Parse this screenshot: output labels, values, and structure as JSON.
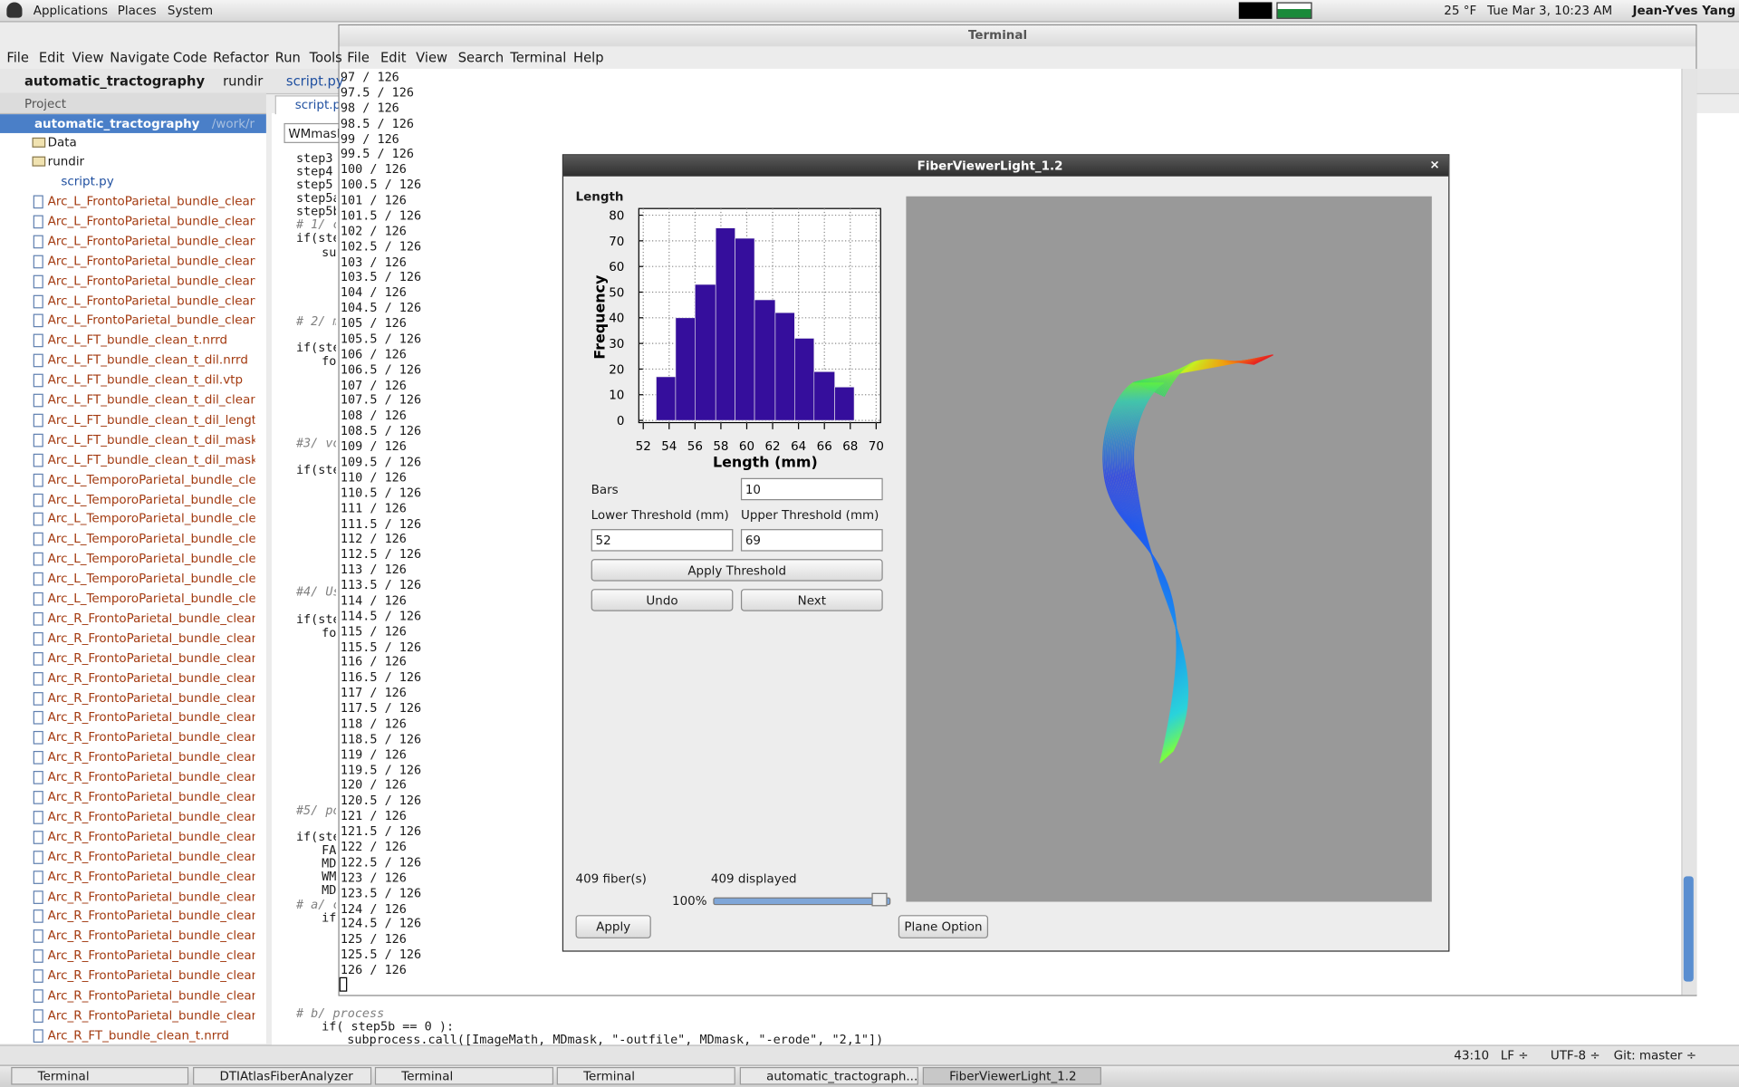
{
  "top_panel": {
    "menus": [
      "Applications",
      "Places",
      "System"
    ],
    "weather": "25 °F",
    "clock": "Tue Mar  3, 10:23 AM",
    "user": "Jean-Yves Yang"
  },
  "ide": {
    "menu": [
      "File",
      "Edit",
      "View",
      "Navigate",
      "Code",
      "Refactor",
      "Run",
      "Tools"
    ],
    "breadcrumb": [
      "automatic_tractography",
      "rundir",
      "script.py"
    ],
    "project_label": "Project",
    "root": {
      "name": "automatic_tractography",
      "path": "/work/r"
    },
    "folders": [
      "Data",
      "rundir"
    ],
    "script": "script.py",
    "files": [
      "Arc_L_FrontoParietal_bundle_clean_",
      "Arc_L_FrontoParietal_bundle_clean_",
      "Arc_L_FrontoParietal_bundle_clean_",
      "Arc_L_FrontoParietal_bundle_clean_",
      "Arc_L_FrontoParietal_bundle_clean_",
      "Arc_L_FrontoParietal_bundle_clean_",
      "Arc_L_FrontoParietal_bundle_clean_",
      "Arc_L_FT_bundle_clean_t.nrrd",
      "Arc_L_FT_bundle_clean_t_dil.nrrd",
      "Arc_L_FT_bundle_clean_t_dil.vtp",
      "Arc_L_FT_bundle_clean_t_dil_cleanE",
      "Arc_L_FT_bundle_clean_t_dil_length",
      "Arc_L_FT_bundle_clean_t_dil_maskC",
      "Arc_L_FT_bundle_clean_t_dil_maskT",
      "Arc_L_TemporoParietal_bundle_clea",
      "Arc_L_TemporoParietal_bundle_clea",
      "Arc_L_TemporoParietal_bundle_clea",
      "Arc_L_TemporoParietal_bundle_clea",
      "Arc_L_TemporoParietal_bundle_clea",
      "Arc_L_TemporoParietal_bundle_clea",
      "Arc_L_TemporoParietal_bundle_clea",
      "Arc_R_FrontoParietal_bundle_clean_",
      "Arc_R_FrontoParietal_bundle_clean_",
      "Arc_R_FrontoParietal_bundle_clean_",
      "Arc_R_FrontoParietal_bundle_clean_",
      "Arc_R_FrontoParietal_bundle_clean_",
      "Arc_R_FrontoParietal_bundle_clean_",
      "Arc_R_FrontoParietal_bundle_clean_",
      "Arc_R_FrontoParietal_bundle_clean_",
      "Arc_R_FrontoParietal_bundle_clean_",
      "Arc_R_FrontoParietal_bundle_clean_",
      "Arc_R_FrontoParietal_bundle_clean_",
      "Arc_R_FrontoParietal_bundle_clean_",
      "Arc_R_FrontoParietal_bundle_clean_",
      "Arc_R_FrontoParietal_bundle_clean_",
      "Arc_R_FrontoParietal_bundle_clean_",
      "Arc_R_FrontoParietal_bundle_clean_",
      "Arc_R_FrontoParietal_bundle_clean_",
      "Arc_R_FrontoParietal_bundle_clean_",
      "Arc_R_FrontoParietal_bundle_clean_",
      "Arc_R_FrontoParietal_bundle_clean_",
      "Arc_R_FrontoParietal_bundle_clean_",
      "Arc_R_FT_bundle_clean_t.nrrd"
    ],
    "tab": "script.py",
    "search": "WMmask",
    "code_top": [
      "step3 =",
      "step4 =",
      "step5 =",
      "step5a",
      "step5b",
      "# 1/ co",
      "if(step",
      "sub",
      "# 2/ ma",
      "if(step",
      "for",
      "#3/ vox",
      "if(step",
      "#4/ Use",
      "if(step",
      "for",
      "#5/ pos",
      "if(step",
      "FA",
      "MDi",
      "WMm",
      "MDm",
      "# a/ cr",
      "if("
    ],
    "code_bottom": [
      "# b/ process",
      "if( step5b == 0 ):",
      "subprocess.call([ImageMath, MDmask, \"-outfile\", MDmask, \"-erode\", \"2,1\"])"
    ],
    "status": [
      "43:10",
      "LF ÷",
      "UTF-8 ÷",
      "Git: master ÷"
    ]
  },
  "terminal": {
    "title": "Terminal",
    "menu": [
      "File",
      "Edit",
      "View",
      "Search",
      "Terminal",
      "Help"
    ],
    "lines": [
      "97 / 126",
      "97.5 / 126",
      "98 / 126",
      "98.5 / 126",
      "99 / 126",
      "99.5 / 126",
      "100 / 126",
      "100.5 / 126",
      "101 / 126",
      "101.5 / 126",
      "102 / 126",
      "102.5 / 126",
      "103 / 126",
      "103.5 / 126",
      "104 / 126",
      "104.5 / 126",
      "105 / 126",
      "105.5 / 126",
      "106 / 126",
      "106.5 / 126",
      "107 / 126",
      "107.5 / 126",
      "108 / 126",
      "108.5 / 126",
      "109 / 126",
      "109.5 / 126",
      "110 / 126",
      "110.5 / 126",
      "111 / 126",
      "111.5 / 126",
      "112 / 126",
      "112.5 / 126",
      "113 / 126",
      "113.5 / 126",
      "114 / 126",
      "114.5 / 126",
      "115 / 126",
      "115.5 / 126",
      "116 / 126",
      "116.5 / 126",
      "117 / 126",
      "117.5 / 126",
      "118 / 126",
      "118.5 / 126",
      "119 / 126",
      "119.5 / 126",
      "120 / 126",
      "120.5 / 126",
      "121 / 126",
      "121.5 / 126",
      "122 / 126",
      "122.5 / 126",
      "123 / 126",
      "123.5 / 126",
      "124 / 126",
      "124.5 / 126",
      "125 / 126",
      "125.5 / 126",
      "126 / 126"
    ]
  },
  "fiberviewer": {
    "title": "FiberViewerLight_1.2",
    "histogram": {
      "type": "histogram",
      "title": "Length",
      "x_label": "Length (mm)",
      "y_label": "Frequency",
      "bins": [
        53,
        54.5,
        56,
        57.6,
        59.1,
        60.6,
        62.2,
        63.7,
        65.2,
        66.8,
        68.3
      ],
      "counts": [
        17,
        40,
        53,
        75,
        71,
        47,
        42,
        32,
        19,
        13
      ],
      "color": "#350e9c",
      "xlim": [
        52,
        70
      ],
      "ylim": [
        0,
        80
      ],
      "xticks": [
        52,
        54,
        56,
        58,
        60,
        62,
        64,
        66,
        68,
        70
      ],
      "yticks": [
        0,
        10,
        20,
        30,
        40,
        50,
        60,
        70,
        80
      ],
      "grid": true
    },
    "bars_label": "Bars",
    "bars": 10,
    "lower_label": "Lower Threshold (mm)",
    "upper_label": "Upper Threshold (mm)",
    "lower": 52,
    "upper": 69,
    "apply_threshold": "Apply Threshold",
    "undo": "Undo",
    "next": "Next",
    "fibers": "409 fiber(s)",
    "displayed": "409 displayed",
    "opacity": "100%",
    "apply": "Apply",
    "plane_option": "Plane Option"
  },
  "taskbar": [
    "Terminal",
    "DTIAtlasFiberAnalyzer",
    "Terminal",
    "Terminal",
    "automatic_tractograph...",
    "FiberViewerLight_1.2"
  ]
}
